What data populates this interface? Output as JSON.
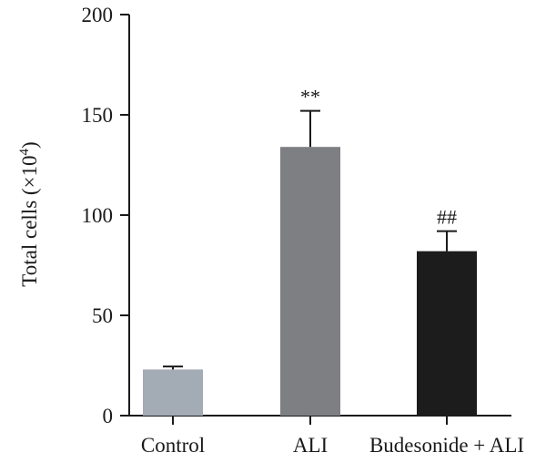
{
  "chart_data": {
    "type": "bar",
    "categories": [
      "Control",
      "ALI",
      "Budesonide + ALI"
    ],
    "values": [
      23,
      134,
      82
    ],
    "errors": [
      1.5,
      18,
      10
    ],
    "annotations": [
      "",
      "**",
      "##"
    ],
    "colors": [
      "#a3abb5",
      "#7e7f83",
      "#1c1c1c"
    ],
    "ylabel_main": "Total cells (×10",
    "ylabel_sup": "4",
    "ylabel_end": ")",
    "ylim": [
      0,
      200
    ],
    "yticks": [
      0,
      50,
      100,
      150,
      200
    ],
    "grid": false
  }
}
